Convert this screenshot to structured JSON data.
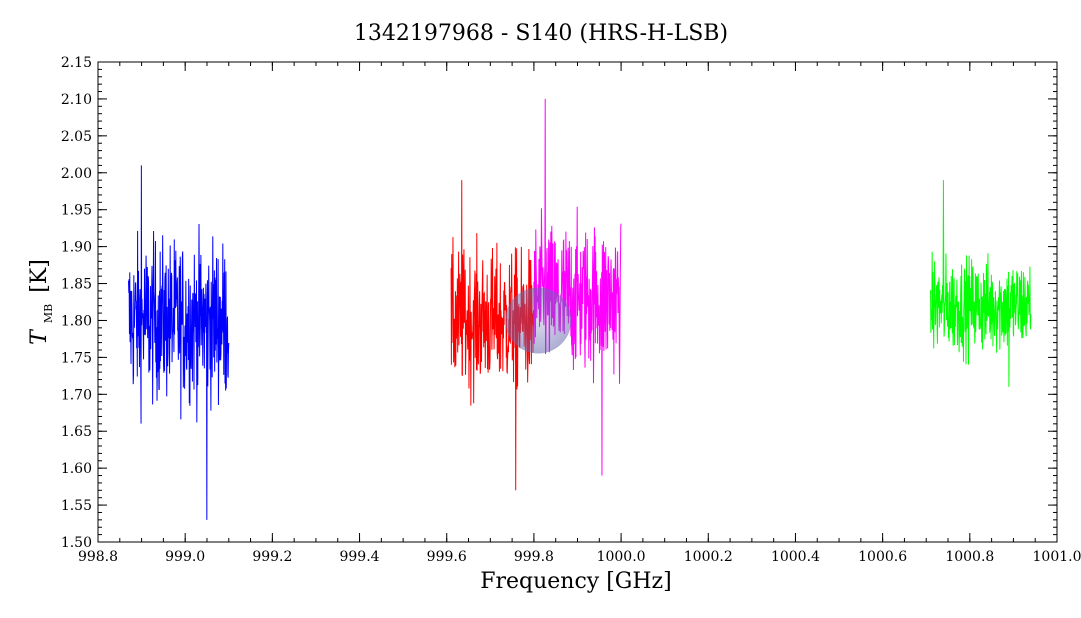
{
  "chart_data": {
    "type": "line",
    "title": "1342197968 - S140 (HRS-H-LSB)",
    "xlabel": "Frequency [GHz]",
    "ylabel_main": "T",
    "ylabel_sub": "MB",
    "ylabel_unit": "[K]",
    "xlim": [
      998.8,
      1001.0
    ],
    "ylim": [
      1.5,
      2.15
    ],
    "xticks": [
      "998.8",
      "999.0",
      "999.2",
      "999.4",
      "999.6",
      "999.8",
      "1000.0",
      "1000.2",
      "1000.4",
      "1000.6",
      "1000.8",
      "1001.0"
    ],
    "yticks": [
      "1.50",
      "1.55",
      "1.60",
      "1.65",
      "1.70",
      "1.75",
      "1.80",
      "1.85",
      "1.90",
      "1.95",
      "2.00",
      "2.05",
      "2.10",
      "2.15"
    ],
    "grid": false,
    "series": [
      {
        "color": "#0000ff",
        "x_start": 998.87,
        "x_end": 999.1,
        "mean": 1.8,
        "sigma": 0.075,
        "y_max": 2.01,
        "y_min": 1.53
      },
      {
        "color": "#ff0000",
        "x_start": 999.61,
        "x_end": 999.8,
        "mean": 1.8,
        "sigma": 0.065,
        "y_max": 1.99,
        "y_min": 1.57
      },
      {
        "color": "#ff00ff",
        "x_start": 999.8,
        "x_end": 1000.0,
        "mean": 1.83,
        "sigma": 0.07,
        "y_max": 2.1,
        "y_min": 1.59
      },
      {
        "color": "#00ff00",
        "x_start": 1000.71,
        "x_end": 1000.94,
        "mean": 1.82,
        "sigma": 0.045,
        "y_max": 1.99,
        "y_min": 1.71
      }
    ],
    "marker": {
      "x": 999.81,
      "y": 1.8,
      "color": "#6a6ab0"
    }
  }
}
